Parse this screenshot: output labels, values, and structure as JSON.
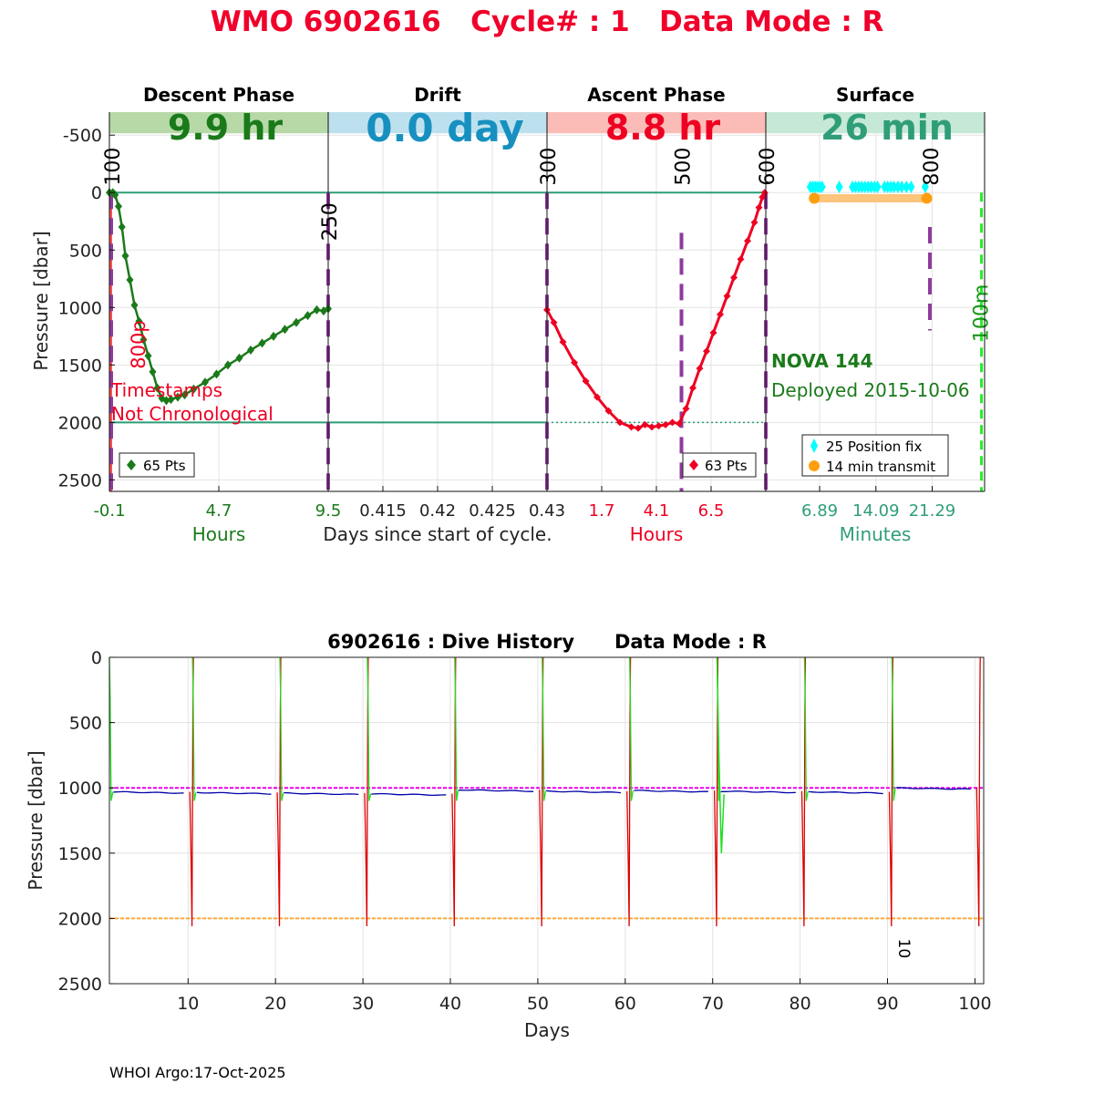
{
  "header": {
    "title": "WMO 6902616   Cycle# : 1   Data Mode : R"
  },
  "footer": {
    "credit": "WHOI Argo:17-Oct-2025"
  },
  "colors": {
    "title_red": "#f0002a",
    "descent_green": "#1a7a1a",
    "descent_bg": "#b7d9a8",
    "drift_blue": "#1790c0",
    "drift_bg": "#bde0ee",
    "ascent_red": "#ee0022",
    "ascent_bg": "#fbbcb8",
    "surface_teal": "#2f9e78",
    "surface_bg": "#c6e8d6",
    "marker_purple": "#8e3b9c",
    "hist_green": "#22dd22",
    "hist_red": "#dd0000",
    "hist_blue": "#0000aa",
    "hist_magenta": "#ee00ee",
    "hist_orange": "#ffaa33",
    "fix_cyan": "#00ffff",
    "transmit_orange": "#ff9f10",
    "transmit_band": "#fdc47c"
  },
  "chart_data": [
    {
      "type": "line",
      "name": "cycle",
      "ylabel": "Pressure [dbar]",
      "ylim": [
        2600,
        -700
      ],
      "yticks": [
        "-500",
        "0",
        "500",
        "1000",
        "1500",
        "2000",
        "2500"
      ],
      "ytick_values": [
        -500,
        0,
        500,
        1000,
        1500,
        2000,
        2500
      ],
      "x_caption": "Days since start of cycle.",
      "reference_lines": [
        0,
        2000
      ],
      "panels": [
        {
          "id": "descent",
          "phase": "Descent Phase",
          "banner": "9.9 hr",
          "xlabel": "Hours",
          "xlim": [
            -0.1,
            9.5
          ],
          "xtick_labels": [
            "-0.1",
            "4.7",
            "9.5"
          ],
          "xtick_values": [
            -0.1,
            4.7,
            9.5
          ],
          "legend": "65 Pts",
          "marker_labels": [
            {
              "text": "100",
              "x": -0.1
            },
            {
              "text": "250",
              "x": 9.5
            }
          ],
          "annotations": [
            "800p",
            "Timestamps",
            "Not Chronological"
          ],
          "x": [
            -0.1,
            0.05,
            0.15,
            0.3,
            0.45,
            0.6,
            0.8,
            1.0,
            1.2,
            1.4,
            1.6,
            1.8,
            2.0,
            2.2,
            2.4,
            2.6,
            2.9,
            3.2,
            3.6,
            4.1,
            4.6,
            5.1,
            5.6,
            6.1,
            6.6,
            7.1,
            7.6,
            8.1,
            8.6,
            9.0,
            9.3,
            9.5
          ],
          "y": [
            0,
            0,
            20,
            120,
            300,
            550,
            760,
            980,
            1120,
            1280,
            1420,
            1560,
            1700,
            1790,
            1810,
            1800,
            1780,
            1760,
            1710,
            1650,
            1580,
            1500,
            1440,
            1370,
            1310,
            1250,
            1190,
            1130,
            1070,
            1020,
            1030,
            1010
          ]
        },
        {
          "id": "drift",
          "phase": "Drift",
          "banner": "0.0 day",
          "xlim": [
            0.41,
            0.43
          ],
          "xtick_labels": [
            "0.415",
            "0.42",
            "0.425",
            "0.43"
          ],
          "xtick_values": [
            0.415,
            0.42,
            0.425,
            0.43
          ]
        },
        {
          "id": "ascent",
          "phase": "Ascent Phase",
          "banner": "8.8 hr",
          "xlabel": "Hours",
          "xlim": [
            -0.7,
            8.9
          ],
          "xtick_labels": [
            "1.7",
            "4.1",
            "6.5"
          ],
          "xtick_values": [
            1.7,
            4.1,
            6.5
          ],
          "legend": "63 Pts",
          "marker_labels": [
            {
              "text": "300",
              "x": -0.7
            },
            {
              "text": "500",
              "x": 5.2
            },
            {
              "text": "600",
              "x": 8.9
            }
          ],
          "x": [
            -0.7,
            -0.4,
            0.0,
            0.5,
            1.0,
            1.5,
            2.0,
            2.5,
            3.0,
            3.3,
            3.6,
            3.9,
            4.2,
            4.5,
            4.8,
            5.1,
            5.4,
            5.7,
            6.0,
            6.3,
            6.6,
            6.9,
            7.2,
            7.5,
            7.8,
            8.1,
            8.4,
            8.6,
            8.75,
            8.85
          ],
          "y": [
            1020,
            1130,
            1300,
            1480,
            1640,
            1780,
            1900,
            2000,
            2040,
            2050,
            2020,
            2040,
            2030,
            2020,
            2000,
            2010,
            1880,
            1700,
            1530,
            1380,
            1220,
            1060,
            900,
            740,
            580,
            420,
            260,
            130,
            40,
            0
          ]
        },
        {
          "id": "surface",
          "phase": "Surface",
          "banner": "26 min",
          "xlabel": "Minutes",
          "xlim": [
            0,
            28
          ],
          "xtick_labels": [
            "6.89",
            "14.09",
            "21.29"
          ],
          "xtick_values": [
            6.89,
            14.09,
            21.29
          ],
          "marker_labels": [
            {
              "text": "800",
              "x": 21
            },
            {
              "text": "100m",
              "x": 27.6
            }
          ],
          "float_name": "NOVA 144",
          "deployed": "Deployed 2015-10-06",
          "legend_fix": "25 Position fix",
          "legend_transmit": "14 min transmit",
          "fix_x": [
            5.7,
            6.0,
            6.3,
            6.6,
            6.9,
            7.2,
            9.4,
            11.1,
            11.5,
            11.9,
            12.3,
            12.7,
            13.1,
            13.5,
            13.9,
            14.3,
            15.2,
            15.6,
            16.0,
            16.4,
            16.9,
            17.4,
            18.0,
            18.6,
            20.4
          ],
          "fix_y": -50,
          "transmit_range": [
            6.2,
            20.6
          ],
          "transmit_y": 50
        }
      ]
    },
    {
      "type": "line",
      "name": "dive-history",
      "title": "6902616 : Dive History      Data Mode : R",
      "xlabel": "Days",
      "ylabel": "Pressure [dbar]",
      "xlim": [
        1,
        101
      ],
      "ylim": [
        0,
        2500
      ],
      "xticks": [
        10,
        20,
        30,
        40,
        50,
        60,
        70,
        80,
        90,
        100
      ],
      "yticks": [
        0,
        500,
        1000,
        1500,
        2000,
        2500
      ],
      "park_pressure": 1000,
      "profile_pressure": 2000,
      "cycle_label": "10",
      "cycle_label_at": {
        "x": 91.3,
        "y": 2230
      },
      "cycles": [
        {
          "start": 1,
          "end": 10.5,
          "park": 1030
        },
        {
          "start": 10.5,
          "end": 20.5,
          "park": 1035
        },
        {
          "start": 20.5,
          "end": 30.5,
          "park": 1040
        },
        {
          "start": 30.5,
          "end": 40.5,
          "park": 1045
        },
        {
          "start": 40.5,
          "end": 50.5,
          "park": 1015
        },
        {
          "start": 50.5,
          "end": 60.5,
          "park": 1025
        },
        {
          "start": 60.5,
          "end": 70.5,
          "park": 1020
        },
        {
          "start": 70.5,
          "end": 80.5,
          "park": 1025
        },
        {
          "start": 80.5,
          "end": 90.5,
          "park": 1030
        },
        {
          "start": 90.5,
          "end": 100.5,
          "park": 1000
        }
      ]
    }
  ]
}
